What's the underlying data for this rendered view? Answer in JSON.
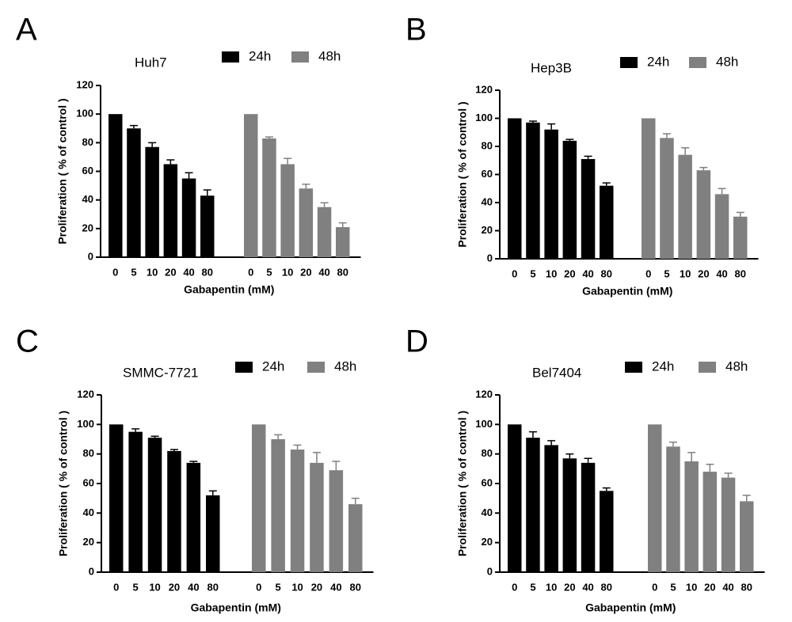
{
  "colors": {
    "series_24h": "#000000",
    "series_48h": "#808080",
    "axis": "#000000"
  },
  "chart_data": [
    {
      "panel": "A",
      "type": "bar",
      "title": "Huh7",
      "xlabel": "Gabapentin (mM)",
      "ylabel": "Proliferation ( % of control )",
      "ylim": [
        0,
        120
      ],
      "yticks": [
        0,
        20,
        40,
        60,
        80,
        100,
        120
      ],
      "grid": false,
      "legend": "top-right",
      "categories": [
        "0",
        "5",
        "10",
        "20",
        "40",
        "80"
      ],
      "series": [
        {
          "name": "24h",
          "values": [
            100,
            90,
            77,
            65,
            55,
            43
          ],
          "errors": [
            0,
            2,
            3,
            3,
            4,
            4
          ]
        },
        {
          "name": "48h",
          "values": [
            100,
            83,
            65,
            48,
            35,
            21
          ],
          "errors": [
            0,
            1,
            4,
            3,
            3,
            3
          ]
        }
      ]
    },
    {
      "panel": "B",
      "type": "bar",
      "title": "Hep3B",
      "xlabel": "Gabapentin (mM)",
      "ylabel": "Proliferation ( % of control )",
      "ylim": [
        0,
        120
      ],
      "yticks": [
        0,
        20,
        40,
        60,
        80,
        100,
        120
      ],
      "grid": false,
      "legend": "top-right",
      "categories": [
        "0",
        "5",
        "10",
        "20",
        "40",
        "80"
      ],
      "series": [
        {
          "name": "24h",
          "values": [
            100,
            97,
            92,
            84,
            71,
            52
          ],
          "errors": [
            0,
            1,
            4,
            1,
            2,
            2
          ]
        },
        {
          "name": "48h",
          "values": [
            100,
            86,
            74,
            63,
            46,
            30
          ],
          "errors": [
            0,
            3,
            5,
            2,
            4,
            3
          ]
        }
      ]
    },
    {
      "panel": "C",
      "type": "bar",
      "title": "SMMC-7721",
      "xlabel": "Gabapentin (mM)",
      "ylabel": "Proliferation ( % of control )",
      "ylim": [
        0,
        120
      ],
      "yticks": [
        0,
        20,
        40,
        60,
        80,
        100,
        120
      ],
      "grid": false,
      "legend": "top-right",
      "categories": [
        "0",
        "5",
        "10",
        "20",
        "40",
        "80"
      ],
      "series": [
        {
          "name": "24h",
          "values": [
            100,
            95,
            91,
            82,
            74,
            52
          ],
          "errors": [
            0,
            2,
            1,
            1,
            1,
            3
          ]
        },
        {
          "name": "48h",
          "values": [
            100,
            90,
            83,
            74,
            69,
            46
          ],
          "errors": [
            0,
            3,
            3,
            7,
            6,
            4
          ]
        }
      ]
    },
    {
      "panel": "D",
      "type": "bar",
      "title": "Bel7404",
      "xlabel": "Gabapentin (mM)",
      "ylabel": "Proliferation ( % of control )",
      "ylim": [
        0,
        120
      ],
      "yticks": [
        0,
        20,
        40,
        60,
        80,
        100,
        120
      ],
      "grid": false,
      "legend": "top-right",
      "categories": [
        "0",
        "5",
        "10",
        "20",
        "40",
        "80"
      ],
      "series": [
        {
          "name": "24h",
          "values": [
            100,
            91,
            86,
            77,
            74,
            55
          ],
          "errors": [
            0,
            4,
            3,
            3,
            3,
            2
          ]
        },
        {
          "name": "48h",
          "values": [
            100,
            85,
            75,
            68,
            64,
            48
          ],
          "errors": [
            0,
            3,
            6,
            5,
            3,
            4
          ]
        }
      ]
    }
  ]
}
